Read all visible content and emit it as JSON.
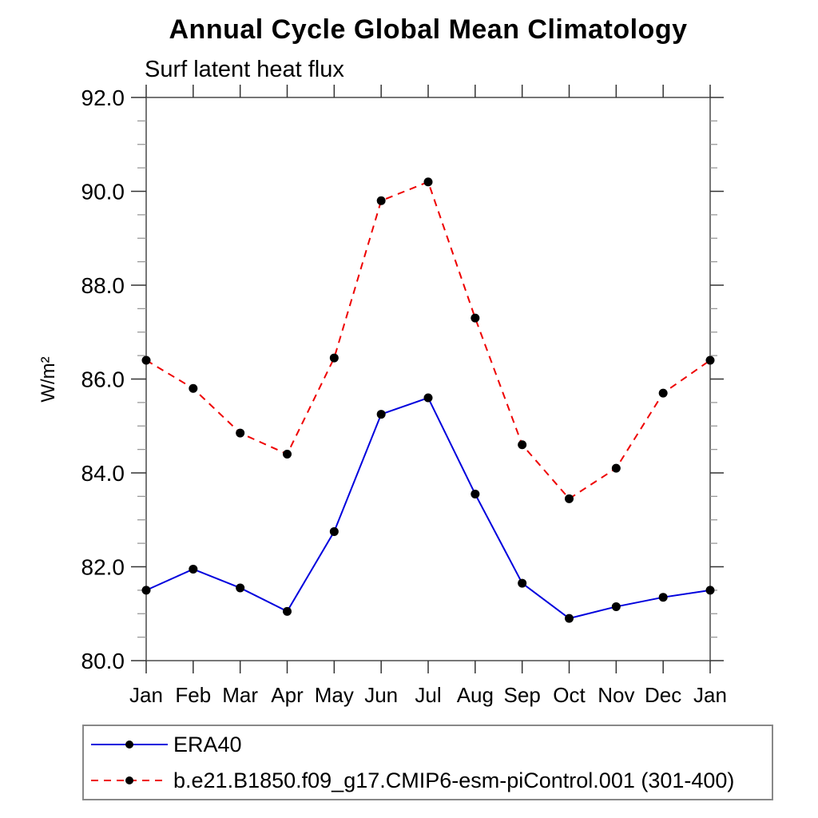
{
  "chart_data": {
    "type": "line",
    "title": "Annual Cycle Global Mean Climatology",
    "subtitle": "Surf latent heat flux",
    "xlabel": "",
    "ylabel": "W/m²",
    "categories": [
      "Jan",
      "Feb",
      "Mar",
      "Apr",
      "May",
      "Jun",
      "Jul",
      "Aug",
      "Sep",
      "Oct",
      "Nov",
      "Dec",
      "Jan"
    ],
    "ylim": [
      80.0,
      92.0
    ],
    "y_major_tick_step": 2.0,
    "y_minor_tick_step": 0.5,
    "y_tick_labels": [
      "80.0",
      "82.0",
      "84.0",
      "86.0",
      "88.0",
      "90.0",
      "92.0"
    ],
    "grid": false,
    "legend_position": "bottom-box",
    "series": [
      {
        "name": "ERA40",
        "color": "#0000dd",
        "line_style": "solid",
        "marker": "filled-circle",
        "marker_color": "#000000",
        "values": [
          81.5,
          81.95,
          81.55,
          81.05,
          82.75,
          85.25,
          85.6,
          83.55,
          81.65,
          80.9,
          81.15,
          81.35,
          81.5
        ]
      },
      {
        "name": "b.e21.B1850.f09_g17.CMIP6-esm-piControl.001 (301-400)",
        "color": "#ee0000",
        "line_style": "dashed",
        "marker": "filled-circle",
        "marker_color": "#000000",
        "values": [
          86.4,
          85.8,
          84.85,
          84.4,
          86.45,
          89.8,
          90.2,
          87.3,
          84.6,
          83.45,
          84.1,
          85.7,
          86.4
        ]
      }
    ]
  }
}
